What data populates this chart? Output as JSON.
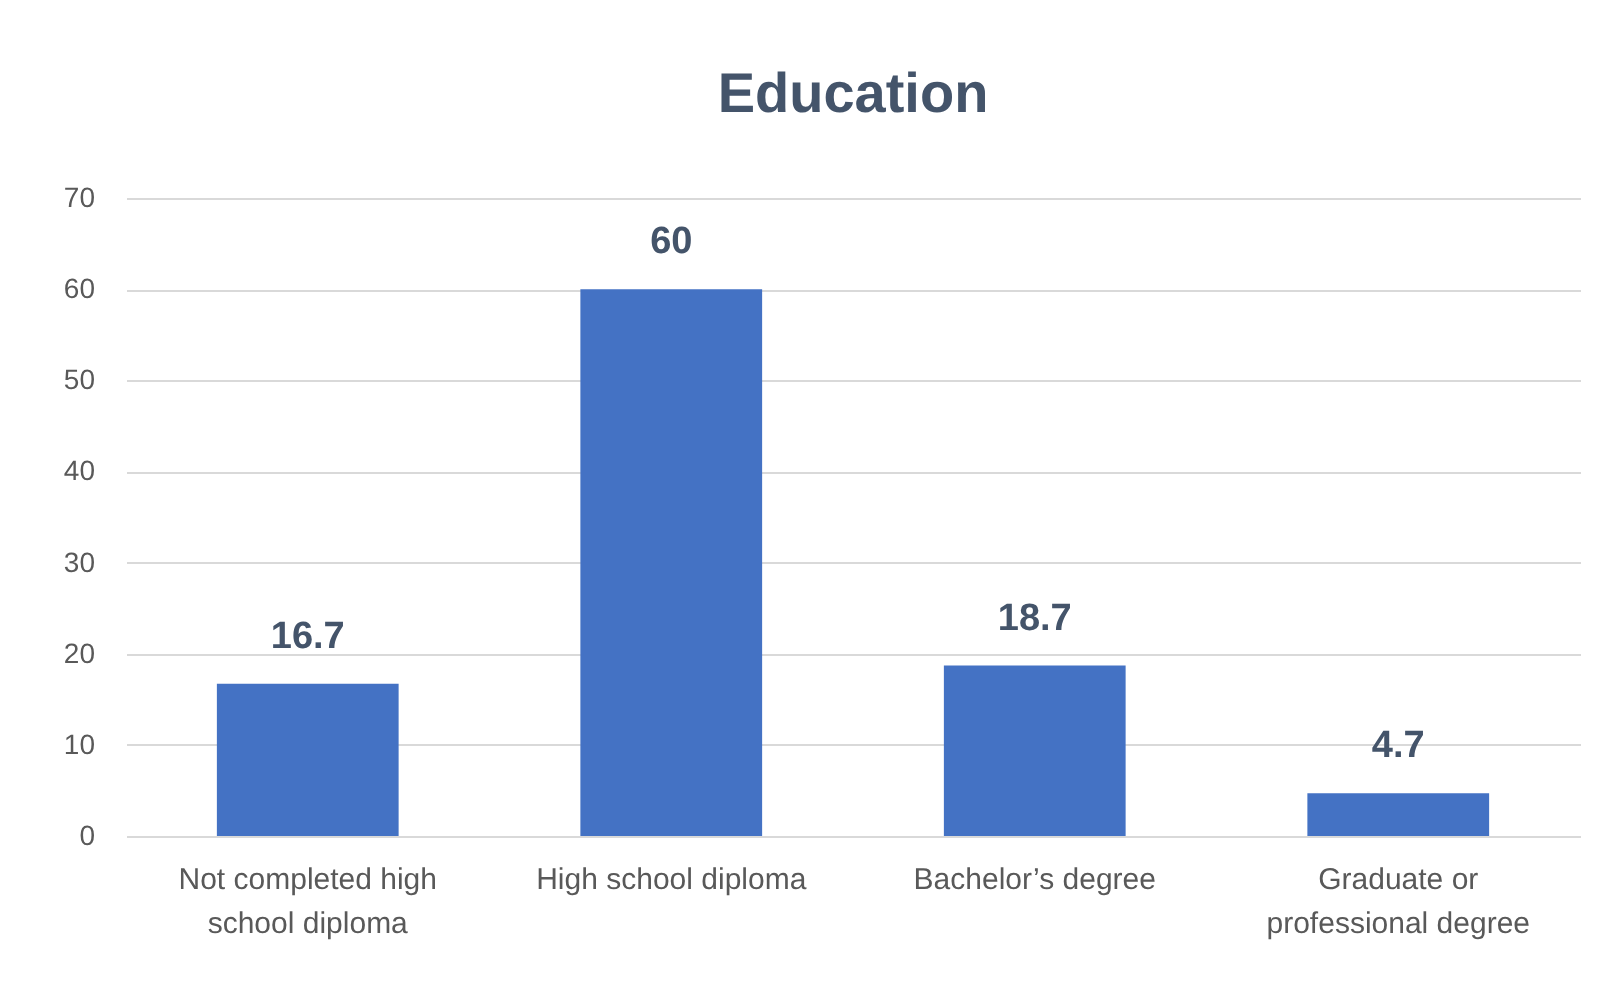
{
  "chart_data": {
    "type": "bar",
    "title": "Education",
    "categories": [
      "Not completed high school diploma",
      "High school diploma",
      "Bachelor’s degree",
      "Graduate or professional degree"
    ],
    "values": [
      16.7,
      60,
      18.7,
      4.7
    ],
    "color": "#4472c4",
    "ylim": [
      0,
      70
    ],
    "yticks": [
      0,
      10,
      20,
      30,
      40,
      50,
      60,
      70
    ],
    "grid": "y",
    "data_labels": true
  }
}
